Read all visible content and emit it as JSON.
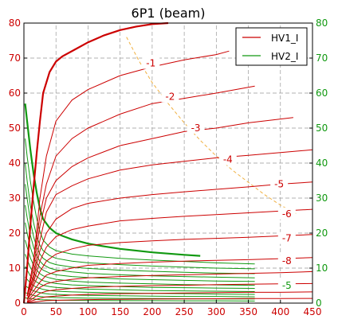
{
  "chart_data": {
    "type": "line",
    "title": "6P1  (beam)",
    "xlim": [
      0,
      450
    ],
    "ylim": [
      0,
      80
    ],
    "xticks": [
      "0",
      "50",
      "100",
      "150",
      "200",
      "250",
      "300",
      "350",
      "400",
      "450"
    ],
    "yticks_left": [
      "0",
      "10",
      "20",
      "30",
      "40",
      "50",
      "60",
      "70",
      "80"
    ],
    "yticks_right": [
      "0",
      "10",
      "20",
      "30",
      "40",
      "50",
      "60",
      "70",
      "80"
    ],
    "grid": true,
    "legend": {
      "position": "top-right",
      "entries": [
        {
          "name": "HV1_I",
          "color": "#cc0000"
        },
        {
          "name": "HV2_I",
          "color": "#119911"
        }
      ]
    },
    "colors": {
      "hv1": "#cc0000",
      "hv2": "#119911",
      "limit": "#f0b040",
      "left_axis": "#cc0000",
      "right_axis": "#119911"
    },
    "hv1_thick": {
      "x": [
        0,
        5,
        10,
        15,
        20,
        25,
        30,
        40,
        50,
        60,
        80,
        100,
        125,
        150,
        175,
        200,
        225
      ],
      "y": [
        0,
        10,
        22,
        33,
        43,
        52,
        60,
        66,
        69,
        70.5,
        72.5,
        74.5,
        76.5,
        78,
        79,
        79.7,
        80
      ]
    },
    "hv1_series": [
      {
        "label": "-1",
        "x": [
          5,
          15,
          25,
          35,
          50,
          75,
          100,
          150,
          200,
          250,
          300,
          320
        ],
        "y": [
          2,
          12,
          30,
          42,
          52,
          58,
          61,
          65,
          67.5,
          69.5,
          71,
          72
        ]
      },
      {
        "label": "-2",
        "x": [
          5,
          15,
          25,
          35,
          50,
          75,
          100,
          150,
          200,
          250,
          300,
          360
        ],
        "y": [
          2,
          12,
          25,
          34,
          42,
          47,
          50,
          54,
          57,
          58.5,
          60,
          62
        ]
      },
      {
        "label": "-3",
        "x": [
          5,
          15,
          25,
          35,
          50,
          75,
          100,
          150,
          200,
          250,
          300,
          350,
          420
        ],
        "y": [
          2,
          10,
          22,
          30,
          35,
          39,
          41.5,
          45,
          47,
          49,
          50,
          51.5,
          53
        ]
      },
      {
        "label": "-4",
        "x": [
          5,
          15,
          25,
          35,
          50,
          75,
          100,
          150,
          200,
          250,
          300,
          350,
          400,
          450
        ],
        "y": [
          2,
          8,
          18,
          26,
          31,
          33.5,
          35.5,
          38,
          39.5,
          40.5,
          41.5,
          42.2,
          43,
          43.8
        ]
      },
      {
        "label": "-5",
        "x": [
          5,
          15,
          25,
          35,
          50,
          75,
          100,
          150,
          200,
          250,
          300,
          350,
          400,
          450
        ],
        "y": [
          2,
          7,
          15,
          20,
          24,
          27,
          28.5,
          30,
          31,
          31.8,
          32.5,
          33.2,
          34,
          34.6
        ]
      },
      {
        "label": "-6",
        "x": [
          5,
          15,
          25,
          35,
          50,
          75,
          100,
          150,
          200,
          250,
          300,
          350,
          400,
          450
        ],
        "y": [
          1,
          6,
          12,
          16,
          19,
          21,
          22,
          23.5,
          24.2,
          24.8,
          25.3,
          25.8,
          26.3,
          26.8
        ]
      },
      {
        "label": "-7",
        "x": [
          5,
          15,
          25,
          35,
          50,
          75,
          100,
          150,
          200,
          250,
          300,
          350,
          400,
          450
        ],
        "y": [
          1,
          5,
          9,
          12,
          14,
          15.5,
          16.5,
          17.3,
          17.8,
          18.2,
          18.5,
          18.8,
          19.2,
          19.6
        ]
      },
      {
        "label": "-8",
        "x": [
          5,
          15,
          25,
          35,
          50,
          75,
          100,
          150,
          200,
          250,
          300,
          350,
          400,
          450
        ],
        "y": [
          1,
          3.5,
          6,
          8,
          9,
          10,
          10.8,
          11.3,
          11.7,
          12,
          12.2,
          12.4,
          12.7,
          13
        ]
      },
      {
        "label": "",
        "x": [
          5,
          15,
          25,
          35,
          50,
          75,
          100,
          150,
          200,
          250,
          300,
          350,
          400,
          450
        ],
        "y": [
          0.5,
          2.5,
          4.5,
          5.5,
          6.2,
          6.8,
          7.2,
          7.6,
          7.9,
          8.1,
          8.3,
          8.5,
          8.7,
          9
        ]
      },
      {
        "label": "",
        "x": [
          5,
          15,
          25,
          35,
          50,
          75,
          100,
          150,
          200,
          250,
          300,
          350,
          400,
          450
        ],
        "y": [
          0.3,
          1.5,
          2.8,
          3.4,
          3.8,
          4.2,
          4.5,
          4.8,
          5,
          5.1,
          5.3,
          5.4,
          5.5,
          5.6
        ]
      },
      {
        "label": "",
        "x": [
          5,
          15,
          25,
          35,
          50,
          75,
          100,
          150,
          200,
          250,
          300,
          350,
          400,
          450
        ],
        "y": [
          0.2,
          0.8,
          1.4,
          1.8,
          2,
          2.3,
          2.5,
          2.7,
          2.8,
          2.9,
          3,
          3.1,
          3.1,
          3.2
        ]
      },
      {
        "label": "",
        "x": [
          5,
          15,
          25,
          35,
          50,
          75,
          100,
          150,
          200,
          250,
          300,
          350,
          400,
          450
        ],
        "y": [
          0.1,
          0.3,
          0.5,
          0.7,
          0.8,
          0.9,
          1,
          1.1,
          1.15,
          1.2,
          1.25,
          1.3,
          1.3,
          1.35
        ]
      }
    ],
    "hv1_labels": [
      {
        "text": "-1",
        "x": 198,
        "y": 68.5
      },
      {
        "text": "-2",
        "x": 228,
        "y": 59
      },
      {
        "text": "-3",
        "x": 268,
        "y": 50
      },
      {
        "text": "-4",
        "x": 318,
        "y": 41
      },
      {
        "text": "-5",
        "x": 398,
        "y": 34
      },
      {
        "text": "-6",
        "x": 410,
        "y": 25.5
      },
      {
        "text": "-7",
        "x": 410,
        "y": 18.5
      },
      {
        "text": "-8",
        "x": 410,
        "y": 12
      }
    ],
    "hv2_thick": {
      "x": [
        2,
        5,
        10,
        15,
        20,
        25,
        30,
        40,
        50,
        60,
        75,
        100,
        125,
        150,
        200,
        250,
        275
      ],
      "y": [
        57,
        52,
        44,
        37,
        31.5,
        27,
        24,
        21.5,
        20,
        19.2,
        18.2,
        17,
        16.2,
        15.5,
        14.5,
        13.8,
        13.5
      ]
    },
    "hv2_series": [
      {
        "x": [
          2,
          5,
          10,
          15,
          20,
          25,
          30,
          40,
          50,
          75,
          100,
          150,
          200,
          250,
          300,
          360
        ],
        "y": [
          47,
          42,
          35,
          29,
          24,
          20.5,
          18,
          16,
          15,
          14,
          13.5,
          12.8,
          12.3,
          11.9,
          11.5,
          11.2
        ]
      },
      {
        "x": [
          2,
          5,
          10,
          15,
          20,
          25,
          30,
          40,
          50,
          75,
          100,
          150,
          200,
          250,
          300,
          360
        ],
        "y": [
          40,
          35,
          28,
          23,
          19,
          16.5,
          15,
          13.6,
          12.8,
          12,
          11.5,
          11,
          10.6,
          10.3,
          10,
          9.8
        ]
      },
      {
        "x": [
          2,
          5,
          10,
          15,
          20,
          25,
          30,
          40,
          50,
          75,
          100,
          150,
          200,
          250,
          300,
          360
        ],
        "y": [
          34,
          30,
          23.5,
          19,
          16,
          14,
          12.8,
          11.6,
          11,
          10.3,
          9.9,
          9.4,
          9.1,
          8.8,
          8.6,
          8.4
        ]
      },
      {
        "x": [
          2,
          5,
          10,
          15,
          20,
          25,
          30,
          40,
          50,
          75,
          100,
          150,
          200,
          250,
          300,
          360
        ],
        "y": [
          28,
          24.5,
          19.5,
          16,
          13.5,
          12,
          11,
          10,
          9.5,
          8.9,
          8.5,
          8.1,
          7.8,
          7.6,
          7.4,
          7.2
        ]
      },
      {
        "x": [
          2,
          5,
          10,
          15,
          20,
          25,
          30,
          40,
          50,
          75,
          100,
          150,
          200,
          250,
          300,
          360
        ],
        "y": [
          23,
          20,
          16,
          13.2,
          11.4,
          10.2,
          9.4,
          8.6,
          8.1,
          7.6,
          7.3,
          6.9,
          6.7,
          6.5,
          6.3,
          6.2
        ]
      },
      {
        "x": [
          2,
          5,
          10,
          15,
          20,
          25,
          30,
          40,
          50,
          75,
          100,
          150,
          200,
          250,
          300,
          360
        ],
        "y": [
          18,
          16,
          13,
          10.8,
          9.4,
          8.4,
          7.8,
          7.2,
          6.8,
          6.3,
          6,
          5.7,
          5.5,
          5.3,
          5.2,
          5.1
        ]
      },
      {
        "x": [
          2,
          5,
          10,
          15,
          20,
          25,
          30,
          40,
          50,
          75,
          100,
          150,
          200,
          250,
          300,
          360
        ],
        "y": [
          14,
          12.5,
          10.2,
          8.6,
          7.6,
          6.9,
          6.4,
          5.9,
          5.6,
          5.2,
          5,
          4.7,
          4.5,
          4.4,
          4.3,
          4.2
        ]
      },
      {
        "x": [
          2,
          5,
          10,
          15,
          20,
          25,
          30,
          40,
          50,
          75,
          100,
          150,
          200,
          250,
          300,
          360
        ],
        "y": [
          10.5,
          9.5,
          7.8,
          6.7,
          6,
          5.5,
          5.1,
          4.7,
          4.5,
          4.2,
          4,
          3.8,
          3.6,
          3.5,
          3.4,
          3.3
        ]
      },
      {
        "x": [
          2,
          5,
          10,
          15,
          20,
          25,
          30,
          40,
          50,
          75,
          100,
          150,
          200,
          250,
          300,
          360
        ],
        "y": [
          7.5,
          6.8,
          5.8,
          5,
          4.5,
          4.2,
          3.9,
          3.6,
          3.4,
          3.2,
          3.1,
          2.9,
          2.8,
          2.7,
          2.6,
          2.5
        ]
      },
      {
        "x": [
          2,
          5,
          10,
          15,
          20,
          25,
          30,
          40,
          50,
          75,
          100,
          150,
          200,
          250,
          300,
          360
        ],
        "y": [
          5,
          4.6,
          4,
          3.5,
          3.2,
          3,
          2.8,
          2.6,
          2.5,
          2.3,
          2.2,
          2.1,
          2,
          1.9,
          1.9,
          1.8
        ]
      },
      {
        "x": [
          2,
          5,
          10,
          15,
          20,
          25,
          30,
          40,
          50,
          75,
          100,
          150,
          200,
          250,
          300,
          360
        ],
        "y": [
          3,
          2.8,
          2.5,
          2.2,
          2,
          1.9,
          1.8,
          1.7,
          1.6,
          1.5,
          1.4,
          1.35,
          1.3,
          1.25,
          1.2,
          1.2
        ]
      },
      {
        "x": [
          2,
          5,
          10,
          15,
          20,
          25,
          30,
          40,
          50,
          75,
          100,
          150,
          200,
          250,
          300,
          360
        ],
        "y": [
          1.5,
          1.4,
          1.3,
          1.2,
          1.1,
          1,
          0.95,
          0.9,
          0.85,
          0.8,
          0.75,
          0.7,
          0.7,
          0.65,
          0.65,
          0.6
        ]
      }
    ],
    "hv2_labels": [
      {
        "text": "-5",
        "x": 410,
        "y": 5
      }
    ],
    "limit_curve": {
      "x": [
        160,
        180,
        200,
        225,
        250,
        275,
        300,
        325,
        350,
        375,
        400,
        425
      ],
      "y": [
        76,
        69,
        63,
        57,
        51.5,
        46.5,
        42,
        38,
        34.5,
        31,
        28,
        25.5
      ]
    }
  }
}
